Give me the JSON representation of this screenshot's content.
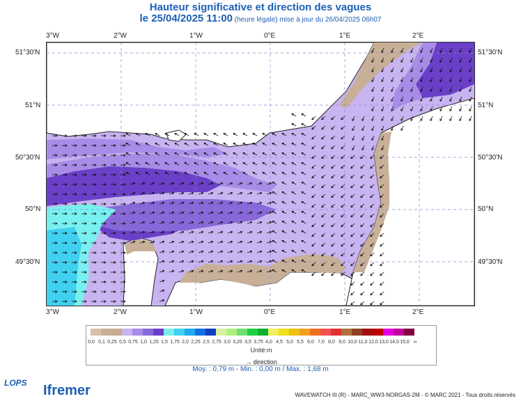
{
  "title": {
    "line1": "Hauteur significative et direction des vagues",
    "line2_main": "le 25/04/2025 11:00",
    "line2_small": " (heure légale) mise à jour du 26/04/2025 06h07"
  },
  "axes": {
    "x_ticks": [
      "3°W",
      "2°W",
      "1°W",
      "0°E",
      "1°E",
      "2°E"
    ],
    "y_ticks": [
      "51°30'N",
      "51°N",
      "50°30'N",
      "50°N",
      "49°30'N"
    ]
  },
  "legend": {
    "values": [
      "0,0",
      "0,1",
      "0,25",
      "0,5",
      "0,75",
      "1,0",
      "1,25",
      "1,5",
      "1,75",
      "2,0",
      "2,25",
      "2,5",
      "2,75",
      "3,0",
      "3,25",
      "3,5",
      "3,75",
      "4,0",
      "4,5",
      "5,0",
      "5,5",
      "6,0",
      "7,0",
      "8,0",
      "9,0",
      "10,0",
      "11,0",
      "12,0",
      "13,0",
      "14,0",
      "15,0",
      "∞"
    ],
    "colors": [
      "#d8c0a8",
      "#c8b098",
      "#c8aa90",
      "#c8b4f0",
      "#a88ce8",
      "#8868d8",
      "#6a40c8",
      "#78f0f0",
      "#40d0f0",
      "#20a8f0",
      "#1070e0",
      "#1040c0",
      "#d8f0a0",
      "#b0f080",
      "#70e070",
      "#20d040",
      "#10b030",
      "#f0f060",
      "#f0e020",
      "#f0c010",
      "#f0a020",
      "#f07020",
      "#f05050",
      "#e03030",
      "#b07040",
      "#904020",
      "#a01010",
      "#c00000",
      "#e000e0",
      "#c000a0",
      "#800040"
    ],
    "unit": "Unité:m",
    "direction": "direction"
  },
  "stats": "Moy. : 0,79 m  -  Min. : 0,00 m / Max. : 1,68 m",
  "credit": "WAVEWATCH III (R) - MARC_WW3-NORGAS-2M - © MARC 2021 - Tous droits réservés",
  "logos": {
    "lops": "LOPS",
    "ifremer": "Ifremer"
  }
}
